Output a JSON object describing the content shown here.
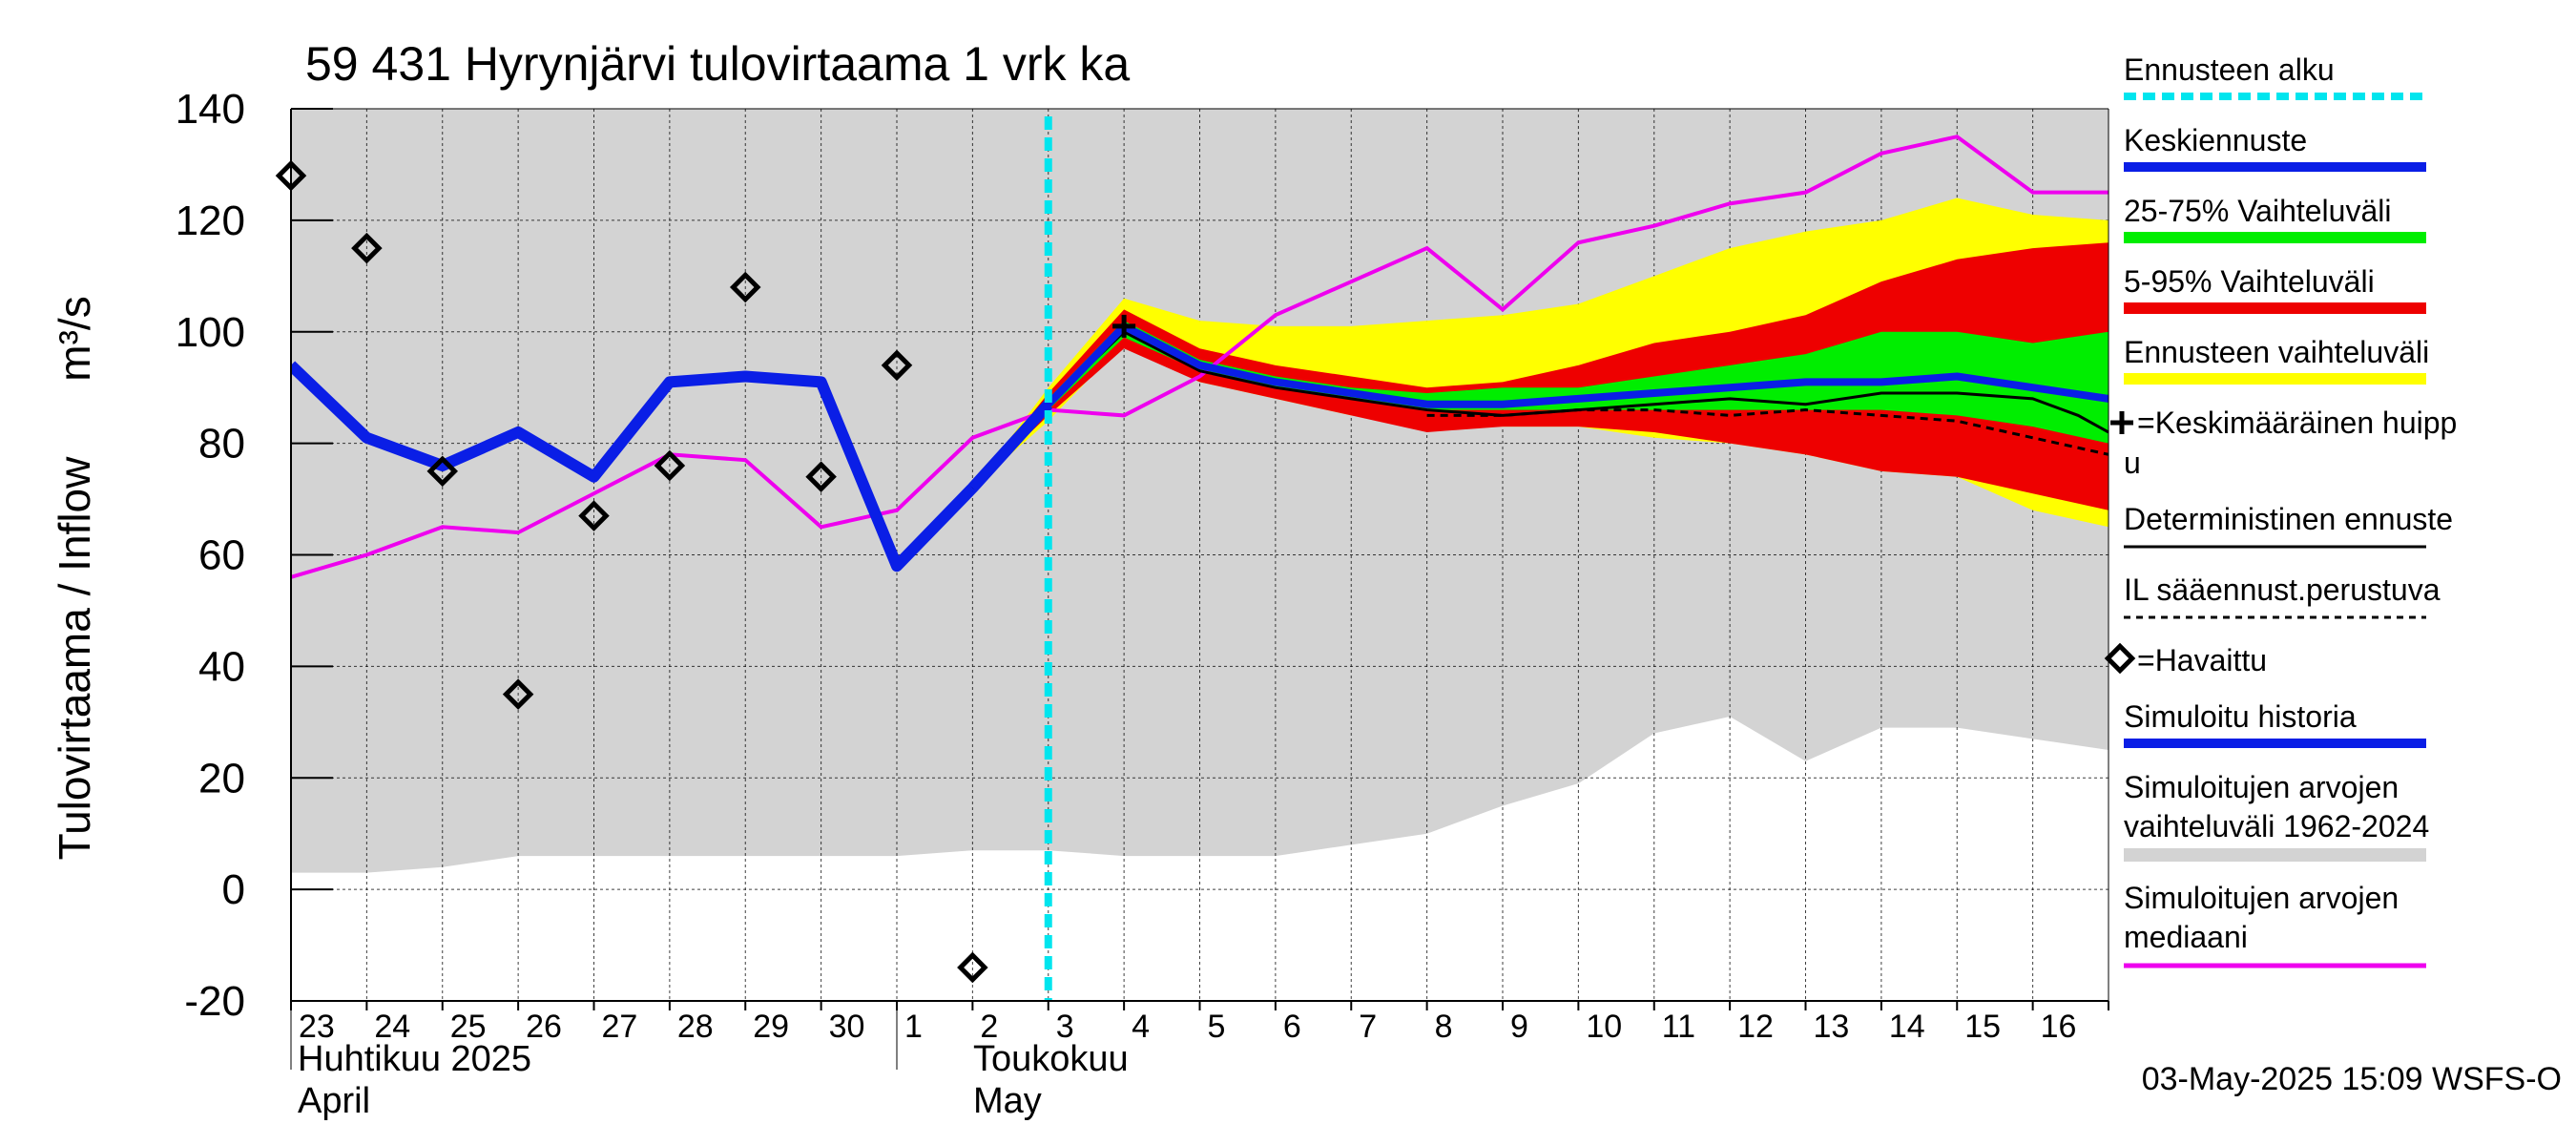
{
  "chart_data": {
    "type": "line",
    "title": "59 431 Hyrynjärvi tulovirtaama 1 vrk ka",
    "ylabel_fi": "Tulovirtaama / Inflow",
    "ylabel_unit": "m³/s",
    "ylim": [
      -20,
      140
    ],
    "yticks": [
      "140",
      "120",
      "100",
      "80",
      "60",
      "40",
      "20",
      "0",
      "-20"
    ],
    "ytick_values": [
      140,
      120,
      100,
      80,
      60,
      40,
      20,
      0,
      -20
    ],
    "xlim": [
      0,
      24
    ],
    "x_tick_labels": [
      "23",
      "24",
      "25",
      "26",
      "27",
      "28",
      "29",
      "30",
      "1",
      "2",
      "3",
      "4",
      "5",
      "6",
      "7",
      "8",
      "9",
      "10",
      "11",
      "12",
      "13",
      "14",
      "15",
      "16"
    ],
    "month_labels": {
      "april_fi": "Huhtikuu  2025",
      "april_en": "April",
      "may_fi": "Toukokuu",
      "may_en": "May"
    },
    "forecast_start_x": 10,
    "timestamp": "03-May-2025 15:09 WSFS-O",
    "sim_range_x": [
      0,
      1,
      2,
      3,
      4,
      5,
      6,
      7,
      8,
      9,
      10,
      11,
      12,
      13,
      14,
      15,
      16,
      17,
      18,
      19,
      20,
      21,
      22,
      23,
      24
    ],
    "sim_range_low": [
      3,
      3,
      4,
      6,
      6,
      6,
      6,
      6,
      6,
      7,
      7,
      6,
      6,
      6,
      8,
      10,
      15,
      19,
      28,
      31,
      23,
      29,
      29,
      27,
      25
    ],
    "sim_range_high": [
      140,
      140,
      140,
      140,
      140,
      140,
      140,
      140,
      140,
      140,
      140,
      140,
      140,
      140,
      140,
      140,
      140,
      140,
      140,
      140,
      140,
      140,
      140,
      140,
      140
    ],
    "fc_x": [
      9,
      10,
      11,
      12,
      13,
      14,
      15,
      16,
      17,
      18,
      19,
      20,
      21,
      22,
      23,
      24
    ],
    "fc_yellow_high": [
      72,
      90,
      106,
      102,
      101,
      101,
      102,
      103,
      105,
      110,
      115,
      118,
      120,
      124,
      121,
      120
    ],
    "fc_yellow_low": [
      72,
      84,
      98,
      91,
      88,
      85,
      83,
      83,
      83,
      81,
      80,
      78,
      75,
      74,
      68,
      65
    ],
    "fc_red_high": [
      72,
      89,
      104,
      97,
      94,
      92,
      90,
      91,
      94,
      98,
      100,
      103,
      109,
      113,
      115,
      116
    ],
    "fc_red_low": [
      72,
      85,
      97,
      91,
      88,
      85,
      82,
      83,
      83,
      82,
      80,
      78,
      75,
      74,
      71,
      68
    ],
    "fc_green_high": [
      72,
      88,
      102,
      95,
      92,
      90,
      89,
      90,
      90,
      92,
      94,
      96,
      100,
      100,
      98,
      100
    ],
    "fc_green_low": [
      72,
      86,
      99,
      93,
      90,
      88,
      86,
      86,
      86,
      86,
      86,
      86,
      86,
      85,
      83,
      80
    ],
    "keskiennuste_x": [
      9,
      10,
      11,
      12,
      13,
      14,
      15,
      16,
      17,
      18,
      19,
      20,
      21,
      22,
      23,
      24
    ],
    "keskiennuste": [
      72,
      87,
      101,
      94,
      91,
      89,
      87,
      87,
      88,
      89,
      90,
      91,
      91,
      92,
      90,
      88
    ],
    "deterministic": [
      72,
      87,
      100,
      93,
      90,
      88,
      86,
      85,
      86,
      87,
      88,
      87,
      89,
      89,
      88,
      85,
      82
    ],
    "deterministic_x": [
      9,
      10,
      11,
      12,
      13,
      14,
      15,
      16,
      17,
      18,
      19,
      20,
      21,
      22,
      23,
      23.6,
      24
    ],
    "il_x": [
      15,
      16,
      17,
      18,
      19,
      20,
      21,
      22,
      23,
      24
    ],
    "il_forecast": [
      85,
      85,
      86,
      86,
      85,
      86,
      85,
      84,
      81,
      78
    ],
    "mean_peak": {
      "x": 11,
      "y": 101
    },
    "sim_history_x": [
      0,
      1,
      2,
      3,
      4,
      5,
      6,
      7,
      8,
      9,
      10
    ],
    "sim_history": [
      94,
      81,
      76,
      82,
      74,
      91,
      92,
      91,
      58,
      72,
      87
    ],
    "median_x": [
      0,
      1,
      2,
      3,
      4,
      5,
      6,
      7,
      8,
      9,
      10,
      11,
      12,
      13,
      14,
      15,
      16,
      17,
      18,
      19,
      20,
      21,
      22,
      23,
      24
    ],
    "median": [
      56,
      60,
      65,
      64,
      71,
      78,
      77,
      65,
      68,
      81,
      86,
      85,
      92,
      103,
      109,
      115,
      104,
      116,
      119,
      123,
      125,
      132,
      135,
      125,
      125
    ],
    "observed_x": [
      0,
      1,
      2,
      3,
      4,
      5,
      6,
      7,
      8,
      9
    ],
    "observed": [
      128,
      115,
      75,
      35,
      67,
      76,
      108,
      74,
      94,
      -14
    ]
  },
  "legend": {
    "items": [
      {
        "label": "Ennusteen alku",
        "color": "#00e5ee"
      },
      {
        "label": "Keskiennuste",
        "color": "#0a1ee6"
      },
      {
        "label": "25-75% Vaihteluväli",
        "color": "#00ee00"
      },
      {
        "label": "5-95% Vaihteluväli",
        "color": "#ee0000"
      },
      {
        "label": "Ennusteen vaihteluväli",
        "color": "#ffff00"
      },
      {
        "label_line1": "=Keskimääräinen huipp",
        "label_line2": "u",
        "color": "#000000"
      },
      {
        "label": "Deterministinen ennuste",
        "color": "#000000"
      },
      {
        "label": "IL sääennust.perustuva",
        "color": "#000000"
      },
      {
        "label": "=Havaittu",
        "color": "#000000"
      },
      {
        "label": "Simuloitu historia",
        "color": "#0a1ee6"
      },
      {
        "label_line1": "Simuloitujen arvojen",
        "label_line2": "vaihteluväli 1962-2024",
        "color": "#d3d3d3"
      },
      {
        "label_line1": "Simuloitujen arvojen",
        "label_line2": "mediaani",
        "color": "#ee00ee"
      }
    ]
  },
  "colors": {
    "grey": "#d3d3d3",
    "yellow": "#ffff00",
    "red": "#ee0000",
    "green": "#00ee00",
    "blue": "#0a1ee6",
    "magenta": "#ee00ee",
    "cyan": "#00e5ee"
  }
}
